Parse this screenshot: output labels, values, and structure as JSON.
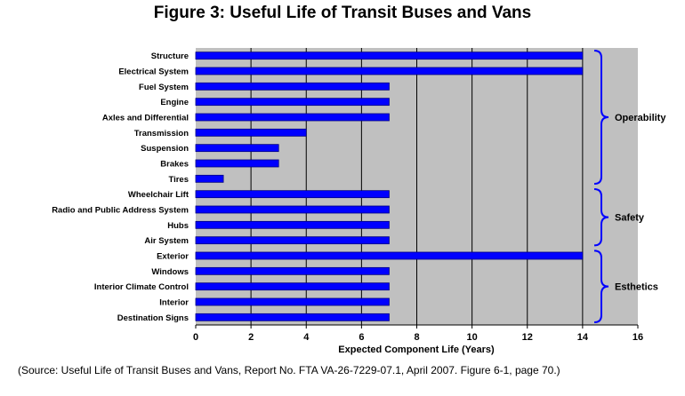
{
  "chart_data": {
    "type": "bar",
    "orientation": "horizontal",
    "title": "Figure 3: Useful Life of Transit Buses and Vans",
    "xlabel": "Expected Component Life (Years)",
    "ylabel": "",
    "xlim": [
      0,
      16
    ],
    "xticks": [
      0,
      2,
      4,
      6,
      8,
      10,
      12,
      14,
      16
    ],
    "grid": "vertical",
    "categories": [
      "Structure",
      "Electrical System",
      "Fuel System",
      "Engine",
      "Axles and Differential",
      "Transmission",
      "Suspension",
      "Brakes",
      "Tires",
      "Wheelchair Lift",
      "Radio and Public Address System",
      "Hubs",
      "Air System",
      "Exterior",
      "Windows",
      "Interior Climate Control",
      "Interior",
      "Destination Signs"
    ],
    "values": [
      14,
      14,
      7,
      7,
      7,
      4,
      3,
      3,
      1,
      7,
      7,
      7,
      7,
      14,
      7,
      7,
      7,
      7
    ],
    "groups": [
      {
        "label": "Operability",
        "first": 0,
        "last": 8
      },
      {
        "label": "Safety",
        "first": 9,
        "last": 12
      },
      {
        "label": "Esthetics",
        "first": 13,
        "last": 17
      }
    ],
    "colors": {
      "bar": "#0000ff",
      "bar_outline": "#000080",
      "plot_bg": "#c0c0c0",
      "gridline": "#000000",
      "brace": "#0000ff"
    }
  },
  "source": "(Source: Useful Life of Transit Buses and Vans, Report No.  FTA VA-26-7229-07.1, April 2007.  Figure 6-1, page 70.)"
}
